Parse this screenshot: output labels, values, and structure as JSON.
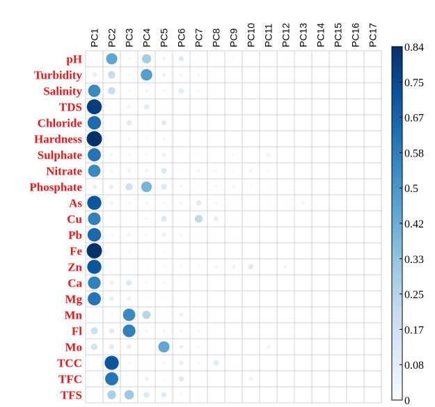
{
  "chart_data": {
    "type": "heatmap",
    "title": "",
    "xlabel": "",
    "ylabel": "",
    "columns": [
      "PC1",
      "PC2",
      "PC3",
      "PC4",
      "PC5",
      "PC6",
      "PC7",
      "PC8",
      "PC9",
      "PC10",
      "PC11",
      "PC12",
      "PC13",
      "PC14",
      "PC15",
      "PC16",
      "PC17"
    ],
    "rows": [
      "pH",
      "Turbidity",
      "Salinity",
      "TDS",
      "Chloride",
      "Hardness",
      "Sulphate",
      "Nitrate",
      "Phosphate",
      "As",
      "Cu",
      "Pb",
      "Fe",
      "Zn",
      "Ca",
      "Mg",
      "Mn",
      "Fl",
      "Mo",
      "TCC",
      "TFC",
      "TFS"
    ],
    "values": [
      [
        0.01,
        0.45,
        0.02,
        0.3,
        0.04,
        0.1,
        0.01,
        0.0,
        0.02,
        0.0,
        0.0,
        0.01,
        0.0,
        0.0,
        0.0,
        0.0,
        0.0
      ],
      [
        0.08,
        0.2,
        0.02,
        0.48,
        0.05,
        0.03,
        0.03,
        0.01,
        0.0,
        0.0,
        0.0,
        0.0,
        0.0,
        0.0,
        0.0,
        0.0,
        0.0
      ],
      [
        0.55,
        0.2,
        0.02,
        0.04,
        0.02,
        0.1,
        0.02,
        0.01,
        0.0,
        0.0,
        0.0,
        0.0,
        0.0,
        0.0,
        0.0,
        0.0,
        0.0
      ],
      [
        0.8,
        0.01,
        0.05,
        0.1,
        0.01,
        0.0,
        0.0,
        0.0,
        0.0,
        0.0,
        0.0,
        0.0,
        0.0,
        0.0,
        0.0,
        0.0,
        0.0
      ],
      [
        0.65,
        0.02,
        0.1,
        0.01,
        0.1,
        0.0,
        0.0,
        0.0,
        0.0,
        0.0,
        0.0,
        0.0,
        0.0,
        0.0,
        0.0,
        0.0,
        0.0
      ],
      [
        0.84,
        0.01,
        0.03,
        0.02,
        0.03,
        0.0,
        0.0,
        0.0,
        0.0,
        0.0,
        0.0,
        0.0,
        0.0,
        0.0,
        0.0,
        0.0,
        0.0
      ],
      [
        0.62,
        0.04,
        0.02,
        0.02,
        0.06,
        0.01,
        0.01,
        0.0,
        0.02,
        0.0,
        0.05,
        0.0,
        0.0,
        0.0,
        0.0,
        0.0,
        0.0
      ],
      [
        0.55,
        0.03,
        0.05,
        0.04,
        0.12,
        0.01,
        0.04,
        0.03,
        0.02,
        0.05,
        0.02,
        0.0,
        0.0,
        0.0,
        0.0,
        0.0,
        0.0
      ],
      [
        0.08,
        0.08,
        0.18,
        0.4,
        0.12,
        0.02,
        0.01,
        0.03,
        0.03,
        0.02,
        0.01,
        0.0,
        0.0,
        0.0,
        0.0,
        0.0,
        0.0
      ],
      [
        0.72,
        0.04,
        0.02,
        0.03,
        0.02,
        0.03,
        0.1,
        0.03,
        0.01,
        0.0,
        0.01,
        0.01,
        0.04,
        0.0,
        0.0,
        0.0,
        0.0
      ],
      [
        0.58,
        0.01,
        0.01,
        0.02,
        0.12,
        0.01,
        0.22,
        0.08,
        0.01,
        0.01,
        0.0,
        0.0,
        0.0,
        0.0,
        0.0,
        0.0,
        0.0
      ],
      [
        0.66,
        0.02,
        0.05,
        0.02,
        0.06,
        0.02,
        0.01,
        0.01,
        0.01,
        0.0,
        0.0,
        0.0,
        0.0,
        0.0,
        0.0,
        0.0,
        0.0
      ],
      [
        0.84,
        0.01,
        0.02,
        0.01,
        0.02,
        0.0,
        0.0,
        0.0,
        0.0,
        0.0,
        0.0,
        0.0,
        0.0,
        0.0,
        0.0,
        0.0,
        0.0
      ],
      [
        0.72,
        0.01,
        0.01,
        0.01,
        0.02,
        0.02,
        0.02,
        0.03,
        0.05,
        0.1,
        0.0,
        0.04,
        0.0,
        0.0,
        0.0,
        0.0,
        0.0
      ],
      [
        0.58,
        0.06,
        0.12,
        0.02,
        0.03,
        0.01,
        0.0,
        0.0,
        0.0,
        0.0,
        0.0,
        0.0,
        0.0,
        0.0,
        0.0,
        0.0,
        0.0
      ],
      [
        0.62,
        0.08,
        0.06,
        0.01,
        0.01,
        0.0,
        0.0,
        0.0,
        0.0,
        0.0,
        0.0,
        0.0,
        0.0,
        0.0,
        0.0,
        0.0,
        0.0
      ],
      [
        0.01,
        0.02,
        0.55,
        0.25,
        0.01,
        0.06,
        0.01,
        0.01,
        0.0,
        0.0,
        0.0,
        0.0,
        0.0,
        0.0,
        0.0,
        0.0,
        0.0
      ],
      [
        0.18,
        0.1,
        0.58,
        0.04,
        0.03,
        0.02,
        0.02,
        0.01,
        0.0,
        0.0,
        0.0,
        0.0,
        0.0,
        0.0,
        0.0,
        0.0,
        0.0
      ],
      [
        0.15,
        0.1,
        0.08,
        0.01,
        0.45,
        0.06,
        0.02,
        0.01,
        0.0,
        0.0,
        0.05,
        0.0,
        0.0,
        0.0,
        0.0,
        0.0,
        0.0
      ],
      [
        0.0,
        0.72,
        0.02,
        0.01,
        0.04,
        0.08,
        0.02,
        0.1,
        0.01,
        0.0,
        0.0,
        0.0,
        0.0,
        0.0,
        0.0,
        0.0,
        0.0
      ],
      [
        0.01,
        0.62,
        0.01,
        0.06,
        0.02,
        0.1,
        0.0,
        0.0,
        0.0,
        0.06,
        0.0,
        0.0,
        0.0,
        0.0,
        0.0,
        0.0,
        0.0
      ],
      [
        0.0,
        0.28,
        0.32,
        0.12,
        0.1,
        0.02,
        0.01,
        0.0,
        0.0,
        0.0,
        0.0,
        0.0,
        0.0,
        0.0,
        0.0,
        0.0,
        0.0
      ]
    ],
    "colorbar": {
      "min": 0,
      "max": 0.84,
      "ticks": [
        "0.84",
        "0.75",
        "0.67",
        "0.58",
        "0.5",
        "0.42",
        "0.33",
        "0.25",
        "0.17",
        "0.08",
        "0"
      ],
      "low_color": "#f7fbff",
      "high_color": "#08306b"
    },
    "grid": true,
    "legend_position": "right"
  }
}
